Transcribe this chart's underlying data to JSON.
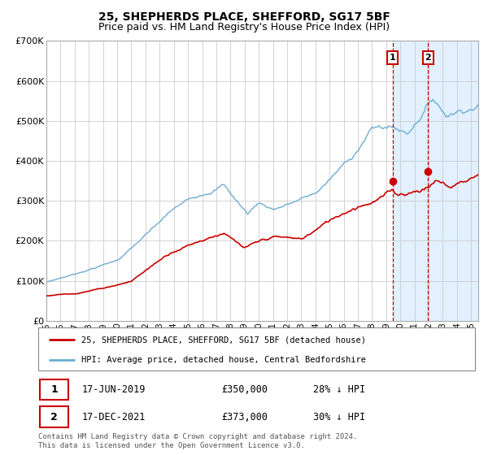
{
  "title1": "25, SHEPHERDS PLACE, SHEFFORD, SG17 5BF",
  "title2": "Price paid vs. HM Land Registry's House Price Index (HPI)",
  "legend1": "25, SHEPHERDS PLACE, SHEFFORD, SG17 5BF (detached house)",
  "legend2": "HPI: Average price, detached house, Central Bedfordshire",
  "annotation1_label": "1",
  "annotation1_date": "17-JUN-2019",
  "annotation1_price": "£350,000",
  "annotation1_hpi": "28% ↓ HPI",
  "annotation2_label": "2",
  "annotation2_date": "17-DEC-2021",
  "annotation2_price": "£373,000",
  "annotation2_hpi": "30% ↓ HPI",
  "footer": "Contains HM Land Registry data © Crown copyright and database right 2024.\nThis data is licensed under the Open Government Licence v3.0.",
  "sale1_year": 2019.46,
  "sale1_price": 350000,
  "sale2_year": 2021.96,
  "sale2_price": 373000,
  "hpi_color": "#6dadd1",
  "price_color": "#cc0000",
  "bg_shade_color": "#ddeeff",
  "grid_color": "#cccccc",
  "annotation_box_color": "#cc0000",
  "ylim_max": 700000,
  "xlim_min": 1995.0,
  "xlim_max": 2025.5
}
